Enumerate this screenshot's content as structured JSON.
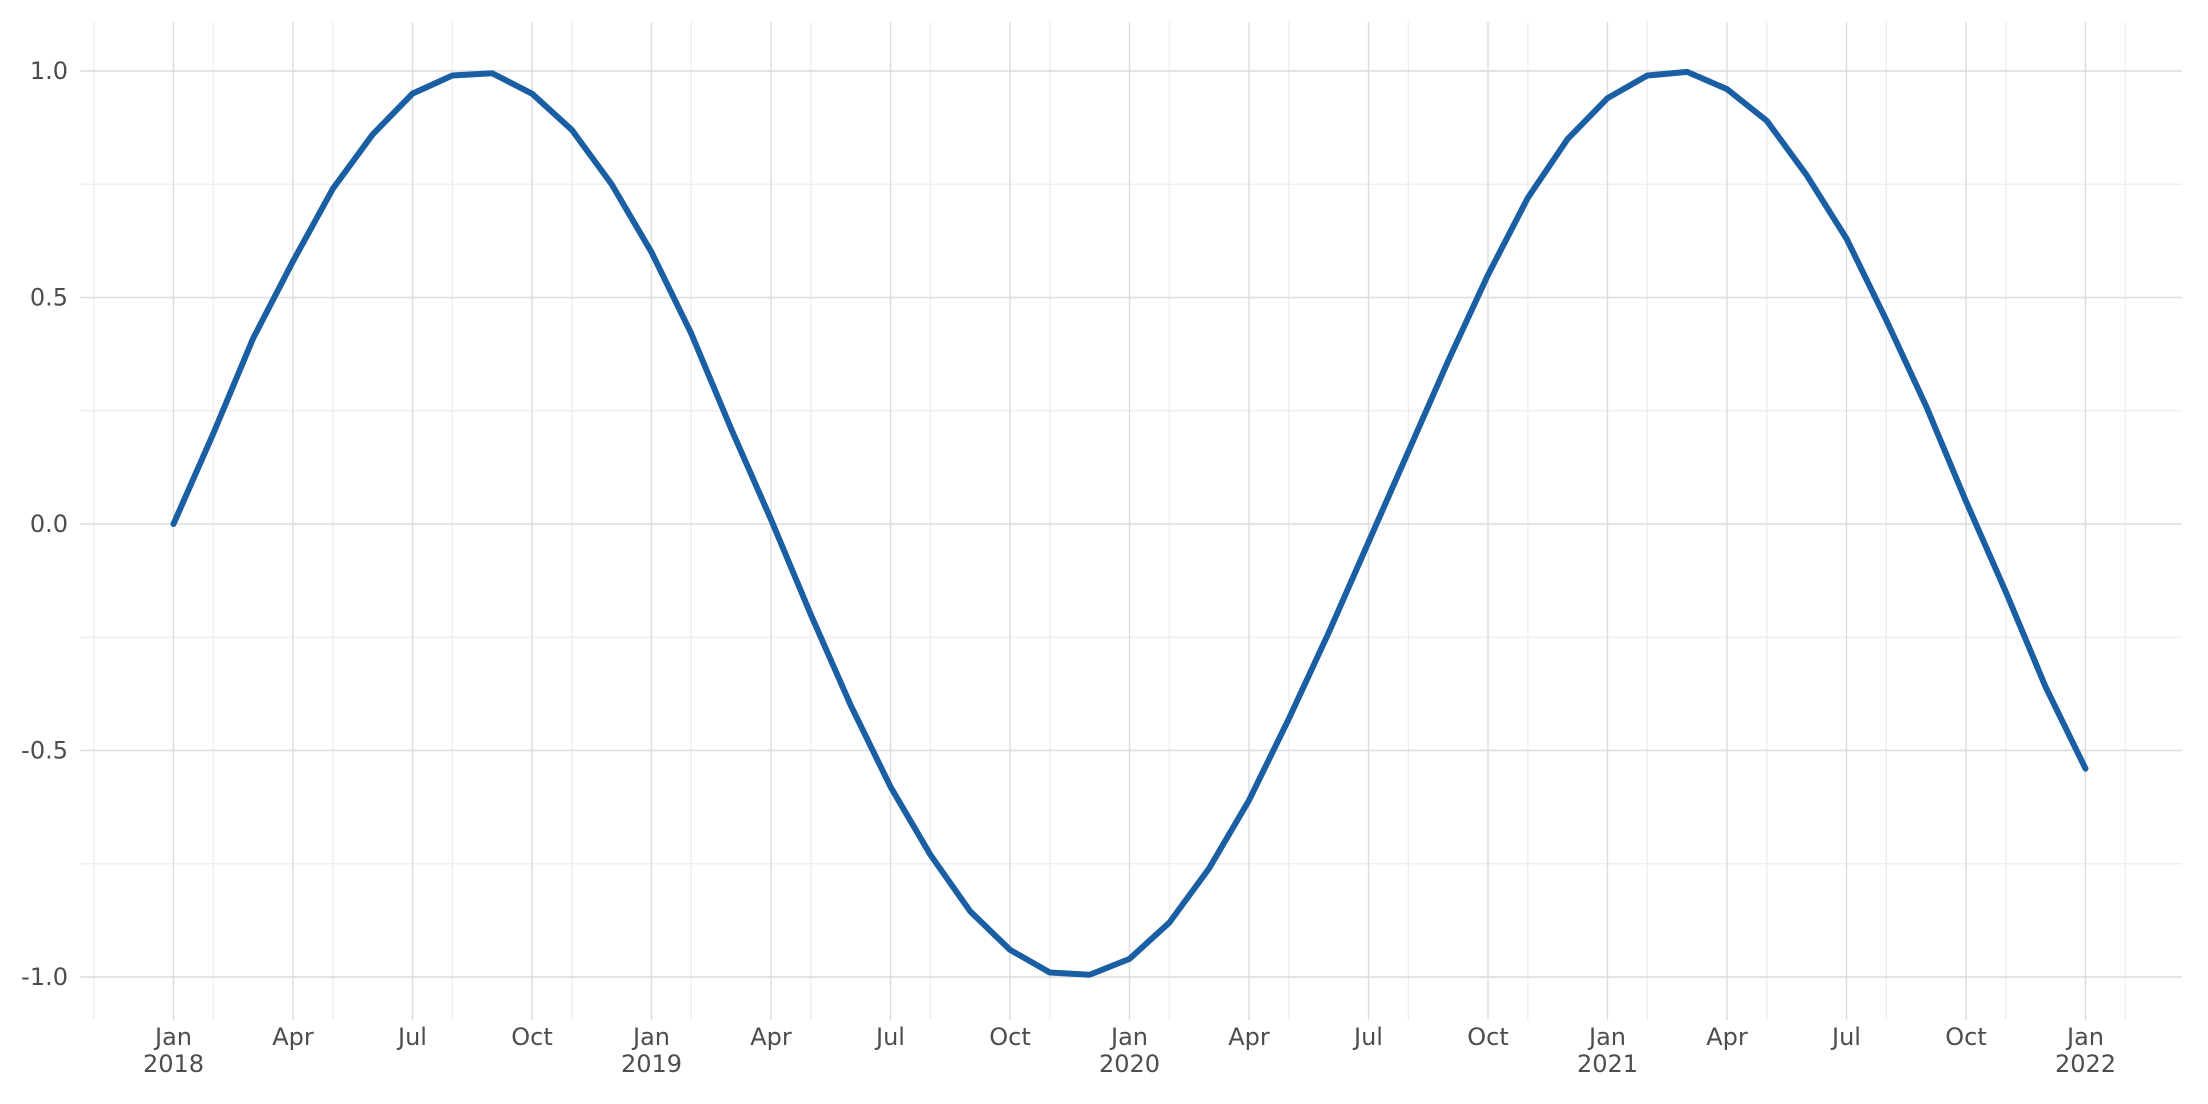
{
  "chart_data": {
    "type": "line",
    "title": "",
    "xlabel": "",
    "ylabel": "",
    "grid": true,
    "legend": "none",
    "line_color": "#1a5fa3",
    "ylim": [
      -1.0,
      1.0
    ],
    "xlim": [
      "2017-10",
      "2022-04"
    ],
    "y_ticks": [
      {
        "value": 1.0,
        "label": "1.0"
      },
      {
        "value": 0.5,
        "label": "0.5"
      },
      {
        "value": 0.0,
        "label": "0.0"
      },
      {
        "value": -0.5,
        "label": "-0.5"
      },
      {
        "value": -1.0,
        "label": "-1.0"
      }
    ],
    "y_minor_ticks": [
      0.75,
      0.25,
      -0.25,
      -0.75
    ],
    "x_ticks": [
      {
        "date": "2018-01",
        "label": "Jan",
        "sublabel": "2018"
      },
      {
        "date": "2018-04",
        "label": "Apr",
        "sublabel": ""
      },
      {
        "date": "2018-07",
        "label": "Jul",
        "sublabel": ""
      },
      {
        "date": "2018-10",
        "label": "Oct",
        "sublabel": ""
      },
      {
        "date": "2019-01",
        "label": "Jan",
        "sublabel": "2019"
      },
      {
        "date": "2019-04",
        "label": "Apr",
        "sublabel": ""
      },
      {
        "date": "2019-07",
        "label": "Jul",
        "sublabel": ""
      },
      {
        "date": "2019-10",
        "label": "Oct",
        "sublabel": ""
      },
      {
        "date": "2020-01",
        "label": "Jan",
        "sublabel": "2020"
      },
      {
        "date": "2020-04",
        "label": "Apr",
        "sublabel": ""
      },
      {
        "date": "2020-07",
        "label": "Jul",
        "sublabel": ""
      },
      {
        "date": "2020-10",
        "label": "Oct",
        "sublabel": ""
      },
      {
        "date": "2021-01",
        "label": "Jan",
        "sublabel": "2021"
      },
      {
        "date": "2021-04",
        "label": "Apr",
        "sublabel": ""
      },
      {
        "date": "2021-07",
        "label": "Jul",
        "sublabel": ""
      },
      {
        "date": "2021-10",
        "label": "Oct",
        "sublabel": ""
      },
      {
        "date": "2022-01",
        "label": "Jan",
        "sublabel": "2022"
      }
    ],
    "x_minor_ticks": [
      "2017-11",
      "2018-02",
      "2018-05",
      "2018-08",
      "2018-11",
      "2019-02",
      "2019-05",
      "2019-08",
      "2019-11",
      "2020-02",
      "2020-05",
      "2020-08",
      "2020-11",
      "2021-02",
      "2021-05",
      "2021-08",
      "2021-11",
      "2022-02"
    ],
    "series": [
      {
        "x": [
          "2018-01",
          "2018-02",
          "2018-03",
          "2018-04",
          "2018-05",
          "2018-06",
          "2018-07",
          "2018-08",
          "2018-09",
          "2018-10",
          "2018-11",
          "2018-12",
          "2019-01",
          "2019-02",
          "2019-03",
          "2019-04",
          "2019-05",
          "2019-06",
          "2019-07",
          "2019-08",
          "2019-09",
          "2019-10",
          "2019-11",
          "2019-12",
          "2020-01",
          "2020-02",
          "2020-03",
          "2020-04",
          "2020-05",
          "2020-06",
          "2020-07",
          "2020-08",
          "2020-09",
          "2020-10",
          "2020-11",
          "2020-12",
          "2021-01",
          "2021-02",
          "2021-03",
          "2021-04",
          "2021-05",
          "2021-06",
          "2021-07",
          "2021-08",
          "2021-09",
          "2021-10",
          "2021-11",
          "2021-12",
          "2022-01"
        ],
        "values": [
          0.0,
          0.2,
          0.41,
          0.58,
          0.74,
          0.86,
          0.95,
          0.99,
          0.995,
          0.95,
          0.87,
          0.75,
          0.6,
          0.42,
          0.21,
          0.01,
          -0.2,
          -0.4,
          -0.58,
          -0.73,
          -0.855,
          -0.94,
          -0.99,
          -0.995,
          -0.96,
          -0.88,
          -0.76,
          -0.61,
          -0.43,
          -0.24,
          -0.04,
          0.16,
          0.36,
          0.55,
          0.72,
          0.85,
          0.94,
          0.99,
          0.998,
          0.96,
          0.89,
          0.77,
          0.63,
          0.45,
          0.26,
          0.05,
          -0.15,
          -0.36,
          -0.54
        ]
      }
    ]
  }
}
